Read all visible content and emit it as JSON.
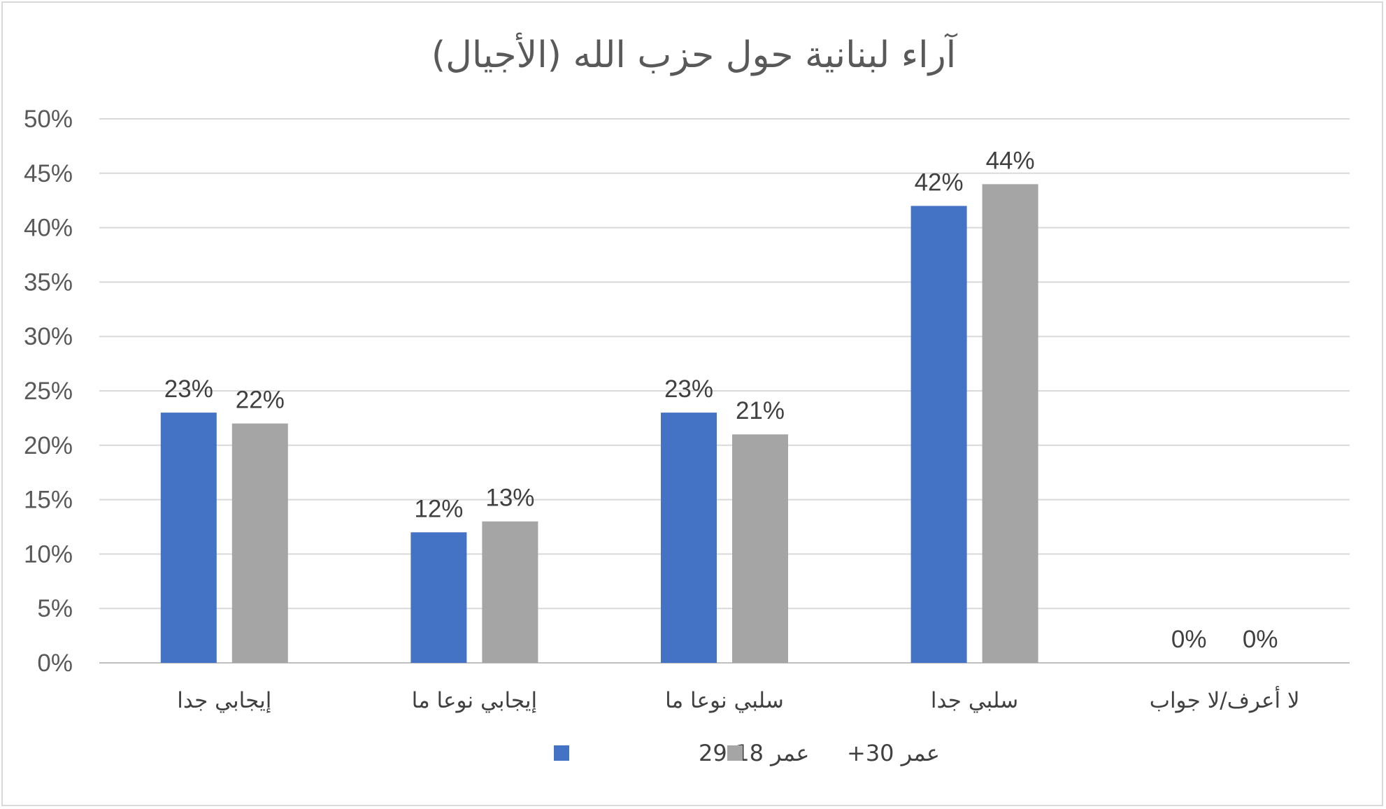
{
  "chart_data": {
    "type": "bar",
    "title": "آراء لبنانية حول  حزب الله (الأجيال)",
    "categories": [
      "إيجابي جدا",
      "إيجابي نوعا ما",
      "سلبي نوعا ما",
      "سلبي جدا",
      "لا أعرف/لا جواب"
    ],
    "series": [
      {
        "name": "عمر 18-29",
        "color": "#4472c4",
        "values": [
          23,
          12,
          23,
          42,
          0
        ],
        "labels": [
          "23%",
          "12%",
          "23%",
          "42%",
          "0%"
        ]
      },
      {
        "name": "عمر 30+",
        "color": "#a5a5a5",
        "values": [
          22,
          13,
          21,
          44,
          0
        ],
        "labels": [
          "22%",
          "13%",
          "21%",
          "44%",
          "0%"
        ]
      }
    ],
    "y_ticks": [
      "0%",
      "5%",
      "10%",
      "15%",
      "20%",
      "25%",
      "30%",
      "35%",
      "40%",
      "45%",
      "50%"
    ],
    "ylim": [
      0,
      50
    ],
    "grid": true,
    "legend_position": "bottom"
  }
}
